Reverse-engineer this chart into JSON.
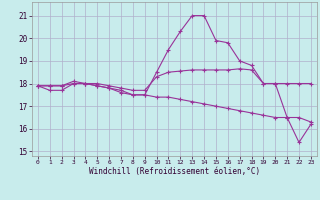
{
  "title": "",
  "xlabel": "Windchill (Refroidissement éolien,°C)",
  "ylabel": "",
  "background_color": "#c8ecec",
  "grid_color": "#b0b0cc",
  "line_color": "#993399",
  "xlim": [
    -0.5,
    23.5
  ],
  "ylim": [
    14.8,
    21.6
  ],
  "yticks": [
    15,
    16,
    17,
    18,
    19,
    20,
    21
  ],
  "xticks": [
    0,
    1,
    2,
    3,
    4,
    5,
    6,
    7,
    8,
    9,
    10,
    11,
    12,
    13,
    14,
    15,
    16,
    17,
    18,
    19,
    20,
    21,
    22,
    23
  ],
  "line1_x": [
    0,
    1,
    2,
    3,
    4,
    5,
    6,
    7,
    8,
    9,
    10,
    11,
    12,
    13,
    14,
    15,
    16,
    17,
    18,
    19,
    20,
    21,
    22,
    23
  ],
  "line1_y": [
    17.9,
    17.7,
    17.7,
    18.0,
    18.0,
    17.9,
    17.8,
    17.6,
    17.5,
    17.5,
    18.5,
    19.5,
    20.3,
    21.0,
    21.0,
    19.9,
    19.8,
    19.0,
    18.8,
    18.0,
    18.0,
    16.5,
    15.4,
    16.2
  ],
  "line2_x": [
    0,
    1,
    2,
    3,
    4,
    5,
    6,
    7,
    8,
    9,
    10,
    11,
    12,
    13,
    14,
    15,
    16,
    17,
    18,
    19,
    20,
    21,
    22,
    23
  ],
  "line2_y": [
    17.9,
    17.9,
    17.9,
    18.1,
    18.0,
    18.0,
    17.9,
    17.8,
    17.7,
    17.7,
    18.3,
    18.5,
    18.55,
    18.6,
    18.6,
    18.6,
    18.6,
    18.65,
    18.6,
    18.0,
    18.0,
    18.0,
    18.0,
    18.0
  ],
  "line3_x": [
    0,
    1,
    2,
    3,
    4,
    5,
    6,
    7,
    8,
    9,
    10,
    11,
    12,
    13,
    14,
    15,
    16,
    17,
    18,
    19,
    20,
    21,
    22,
    23
  ],
  "line3_y": [
    17.9,
    17.9,
    17.9,
    18.0,
    18.0,
    17.9,
    17.8,
    17.7,
    17.5,
    17.5,
    17.4,
    17.4,
    17.3,
    17.2,
    17.1,
    17.0,
    16.9,
    16.8,
    16.7,
    16.6,
    16.5,
    16.5,
    16.5,
    16.3
  ]
}
